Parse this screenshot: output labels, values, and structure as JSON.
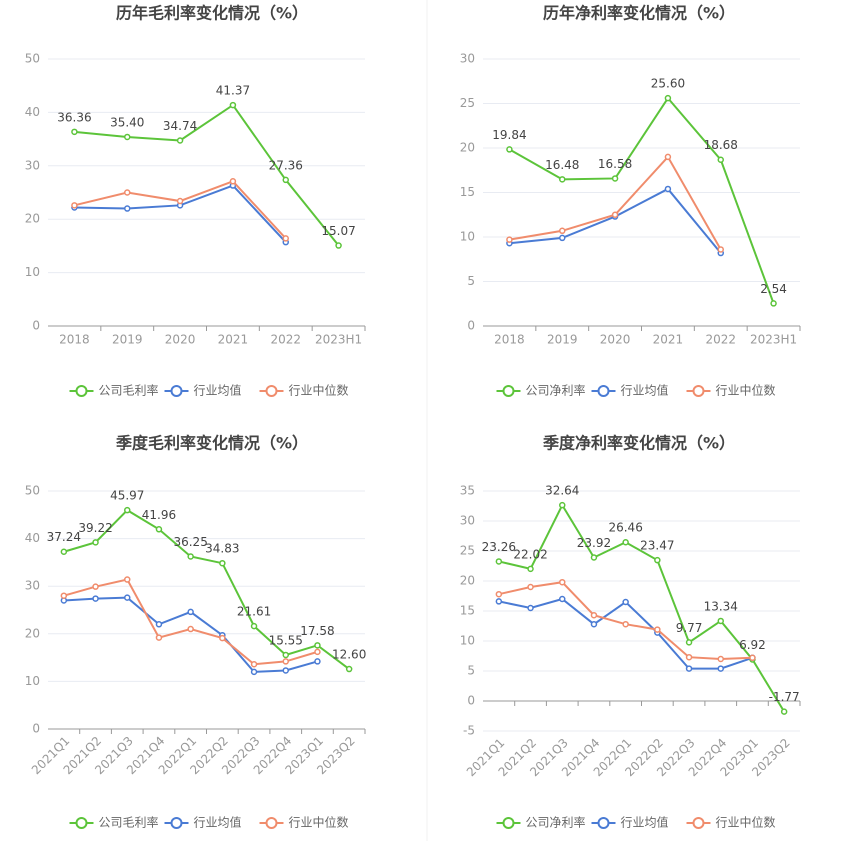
{
  "chart_data": [
    {
      "type": "line",
      "title": "历年毛利率变化情况（%）",
      "categories": [
        "2018",
        "2019",
        "2020",
        "2021",
        "2022",
        "2023H1"
      ],
      "ylim": [
        0,
        50
      ],
      "yticks": [
        0,
        10,
        20,
        30,
        40,
        50
      ],
      "grid": true,
      "legend": "bottom",
      "series": [
        {
          "name": "公司毛利率",
          "color": "#5cc43a",
          "values": [
            36.36,
            35.4,
            34.74,
            41.37,
            27.36,
            15.07
          ],
          "value_labels": [
            "36.36",
            "35.40",
            "34.74",
            "41.37",
            "27.36",
            "15.07"
          ]
        },
        {
          "name": "行业均值",
          "color": "#4a7bd4",
          "values": [
            22.2,
            22.0,
            22.6,
            26.3,
            15.7,
            null
          ]
        },
        {
          "name": "行业中位数",
          "color": "#f08c6c",
          "values": [
            22.6,
            25.0,
            23.4,
            27.1,
            16.4,
            null
          ]
        }
      ]
    },
    {
      "type": "line",
      "title": "历年净利率变化情况（%）",
      "categories": [
        "2018",
        "2019",
        "2020",
        "2021",
        "2022",
        "2023H1"
      ],
      "ylim": [
        0,
        30
      ],
      "yticks": [
        0,
        5,
        10,
        15,
        20,
        25,
        30
      ],
      "grid": true,
      "legend": "bottom",
      "series": [
        {
          "name": "公司净利率",
          "color": "#5cc43a",
          "values": [
            19.84,
            16.48,
            16.58,
            25.6,
            18.68,
            2.54
          ],
          "value_labels": [
            "19.84",
            "16.48",
            "16.58",
            "25.60",
            "18.68",
            "2.54"
          ]
        },
        {
          "name": "行业均值",
          "color": "#4a7bd4",
          "values": [
            9.3,
            9.9,
            12.3,
            15.4,
            8.2,
            null
          ]
        },
        {
          "name": "行业中位数",
          "color": "#f08c6c",
          "values": [
            9.7,
            10.7,
            12.5,
            19.0,
            8.6,
            null
          ]
        }
      ]
    },
    {
      "type": "line",
      "title": "季度毛利率变化情况（%）",
      "categories": [
        "2021Q1",
        "2021Q2",
        "2021Q3",
        "2021Q4",
        "2022Q1",
        "2022Q2",
        "2022Q3",
        "2022Q4",
        "2023Q1",
        "2023Q2"
      ],
      "ylim": [
        0,
        50
      ],
      "yticks": [
        0,
        10,
        20,
        30,
        40,
        50
      ],
      "grid": true,
      "legend": "bottom",
      "series": [
        {
          "name": "公司毛利率",
          "color": "#5cc43a",
          "values": [
            37.24,
            39.22,
            45.97,
            41.96,
            36.25,
            34.83,
            21.61,
            15.55,
            17.58,
            12.6
          ],
          "value_labels": [
            "37.24",
            "39.22",
            "45.97",
            "41.96",
            "36.25",
            "34.83",
            "21.61",
            "15.55",
            "17.58",
            "12.60"
          ]
        },
        {
          "name": "行业均值",
          "color": "#4a7bd4",
          "values": [
            27.0,
            27.4,
            27.6,
            22.0,
            24.6,
            19.7,
            12.0,
            12.3,
            14.2,
            null
          ]
        },
        {
          "name": "行业中位数",
          "color": "#f08c6c",
          "values": [
            28.0,
            29.9,
            31.4,
            19.2,
            21.0,
            19.1,
            13.6,
            14.2,
            16.2,
            null
          ]
        }
      ]
    },
    {
      "type": "line",
      "title": "季度净利率变化情况（%）",
      "categories": [
        "2021Q1",
        "2021Q2",
        "2021Q3",
        "2021Q4",
        "2022Q1",
        "2022Q2",
        "2022Q3",
        "2022Q4",
        "2023Q1",
        "2023Q2"
      ],
      "ylim": [
        -5,
        35
      ],
      "yticks": [
        -5,
        0,
        5,
        10,
        15,
        20,
        25,
        30,
        35
      ],
      "grid": true,
      "legend": "bottom",
      "series": [
        {
          "name": "公司净利率",
          "color": "#5cc43a",
          "values": [
            23.26,
            22.02,
            32.64,
            23.92,
            26.46,
            23.47,
            9.77,
            13.34,
            6.92,
            -1.77
          ],
          "value_labels": [
            "23.26",
            "22.02",
            "32.64",
            "23.92",
            "26.46",
            "23.47",
            "9.77",
            "13.34",
            "6.92",
            "-1.77"
          ]
        },
        {
          "name": "行业均值",
          "color": "#4a7bd4",
          "values": [
            16.6,
            15.5,
            17.0,
            12.8,
            16.5,
            11.4,
            5.4,
            5.4,
            7.2,
            null
          ]
        },
        {
          "name": "行业中位数",
          "color": "#f08c6c",
          "values": [
            17.8,
            19.0,
            19.8,
            14.3,
            12.8,
            11.9,
            7.3,
            7.0,
            7.2,
            null
          ]
        }
      ]
    }
  ]
}
